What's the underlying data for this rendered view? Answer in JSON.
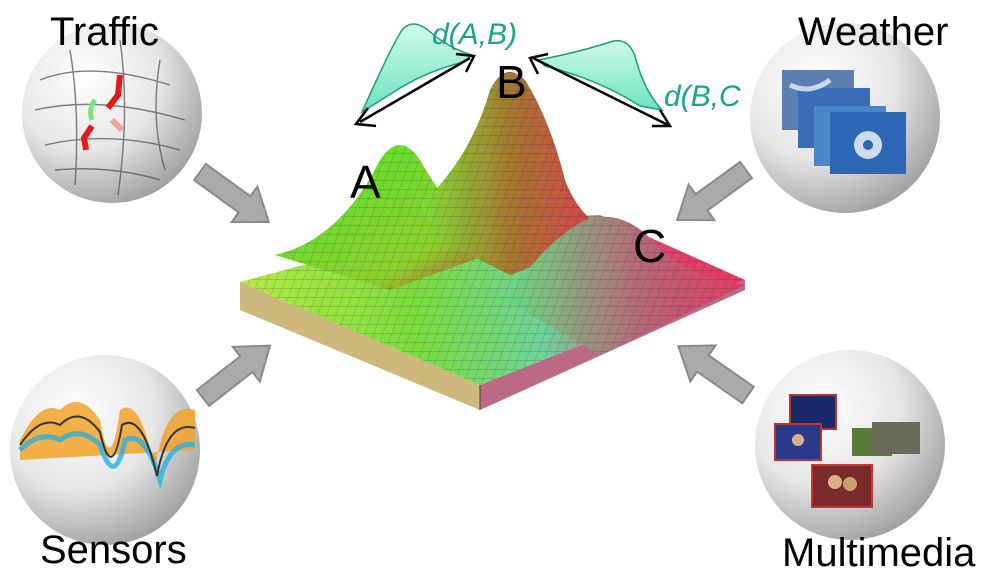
{
  "sources": {
    "traffic": "Traffic",
    "weather": "Weather",
    "sensors": "Sensors",
    "multimedia": "Multimedia"
  },
  "peaks": {
    "a": "A",
    "b": "B",
    "c": "C"
  },
  "distances": {
    "ab": "d(A,B)",
    "bc": "d(B,C"
  },
  "colors": {
    "distance_text": "#1aa58a",
    "bell_fill": "#9ff1d3",
    "arrow_fill": "#a9a9a9",
    "arrow_stroke": "#8a8a8a",
    "surface_high": "#e0305a",
    "surface_low": "#6dea3a"
  }
}
